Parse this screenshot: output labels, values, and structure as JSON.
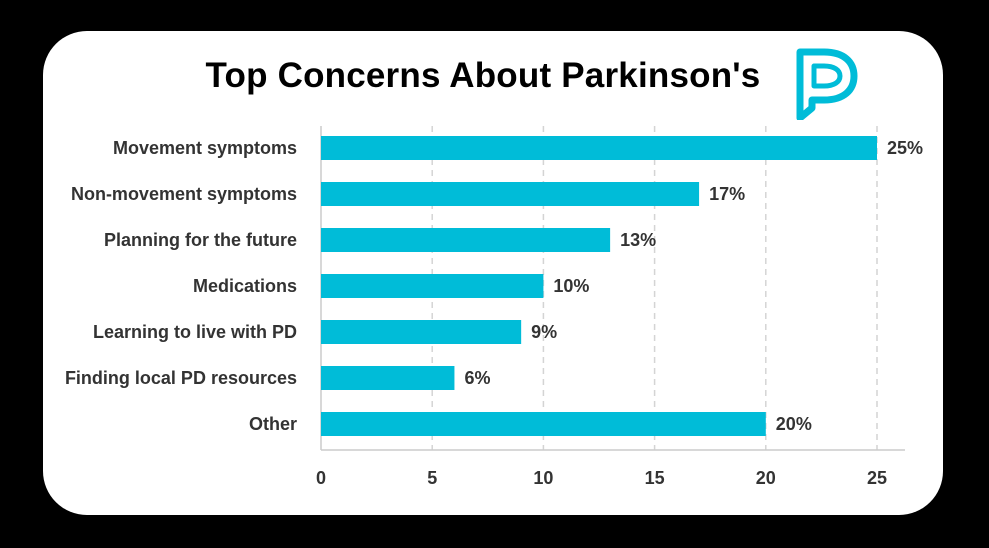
{
  "colors": {
    "bar": "#00bcd8",
    "background": "#000000",
    "card": "#ffffff",
    "logo": "#00bcd8"
  },
  "logo_icon": "parkinsons-p-logo-icon",
  "chart_data": {
    "type": "bar",
    "orientation": "horizontal",
    "title": "Top Concerns About Parkinson's",
    "categories": [
      "Movement symptoms",
      "Non-movement symptoms",
      "Planning for the future",
      "Medications",
      "Learning to live with PD",
      "Finding local PD resources",
      "Other"
    ],
    "values": [
      25,
      17,
      13,
      10,
      9,
      6,
      20
    ],
    "value_labels": [
      "25%",
      "17%",
      "13%",
      "10%",
      "9%",
      "6%",
      "20%"
    ],
    "xlim": [
      0,
      25
    ],
    "xticks": [
      0,
      5,
      10,
      15,
      20,
      25
    ],
    "xtick_labels": [
      "0",
      "5",
      "10",
      "15",
      "20",
      "25"
    ],
    "xlabel": "",
    "ylabel": "",
    "grid": "vertical dashed"
  }
}
